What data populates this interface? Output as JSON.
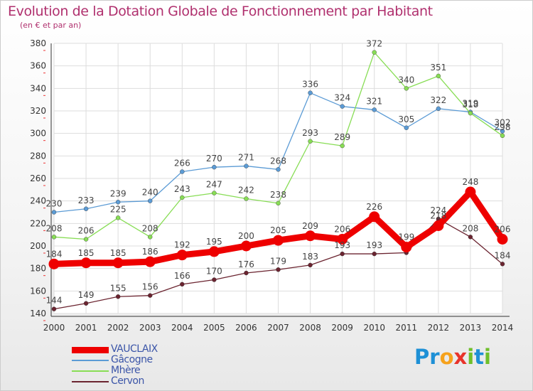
{
  "chart_data": {
    "type": "line",
    "title": "Evolution de la Dotation Globale de Fonctionnement par Habitant",
    "subtitle": "(en € et par an)",
    "categories": [
      "2000",
      "2001",
      "2002",
      "2003",
      "2004",
      "2005",
      "2006",
      "2007",
      "2008",
      "2009",
      "2010",
      "2011",
      "2012",
      "2013",
      "2014"
    ],
    "yticks": [
      "140",
      "160",
      "180",
      "200",
      "220",
      "240",
      "260",
      "280",
      "300",
      "320",
      "340",
      "360",
      "380"
    ],
    "ylim": [
      140,
      380
    ],
    "grid": true,
    "legend_position": "bottom-left",
    "series": [
      {
        "name": "VAUCLAIX",
        "color": "#ee0000",
        "emphasis": true,
        "values": [
          184,
          185,
          185,
          186,
          192,
          195,
          200,
          205,
          209,
          206,
          226,
          199,
          218,
          248,
          206
        ],
        "labels": [
          "184",
          "185",
          "185",
          "186",
          "192",
          "195",
          "200",
          "205",
          "209",
          "206",
          "226",
          "199",
          "218",
          "248",
          "206"
        ]
      },
      {
        "name": "Gâcogne",
        "color": "#5b9bd5",
        "values": [
          230,
          233,
          239,
          240,
          266,
          270,
          271,
          268,
          336,
          324,
          321,
          305,
          322,
          319,
          302
        ],
        "labels": [
          "230",
          "233",
          "239",
          "240",
          "266",
          "270",
          "271",
          "268",
          "336",
          "324",
          "321",
          "305",
          "322",
          "319",
          "302"
        ]
      },
      {
        "name": "Mhère",
        "color": "#88dd55",
        "values": [
          208,
          206,
          225,
          208,
          243,
          247,
          242,
          238,
          293,
          289,
          372,
          340,
          351,
          318,
          298
        ],
        "labels": [
          "208",
          "206",
          "225",
          "208",
          "243",
          "247",
          "242",
          "238",
          "293",
          "289",
          "372",
          "340",
          "351",
          "318",
          "298"
        ]
      },
      {
        "name": "Cervon",
        "color": "#6b2430",
        "values": [
          144,
          149,
          155,
          156,
          166,
          170,
          176,
          179,
          183,
          193,
          193,
          194,
          224,
          208,
          184
        ],
        "labels": [
          "144",
          "149",
          "155",
          "156",
          "166",
          "170",
          "176",
          "179",
          "183",
          "193",
          "193",
          "",
          "224",
          "208",
          "184"
        ]
      }
    ]
  },
  "brand": {
    "parts": [
      {
        "text": "Pr",
        "color": "#1e90d6"
      },
      {
        "text": "o",
        "color": "#f6a21c"
      },
      {
        "text": "x",
        "color": "#e8332a"
      },
      {
        "text": "i",
        "color": "#6fbf2a"
      },
      {
        "text": "t",
        "color": "#1e90d6"
      },
      {
        "text": "i",
        "color": "#6fbf2a"
      }
    ]
  }
}
